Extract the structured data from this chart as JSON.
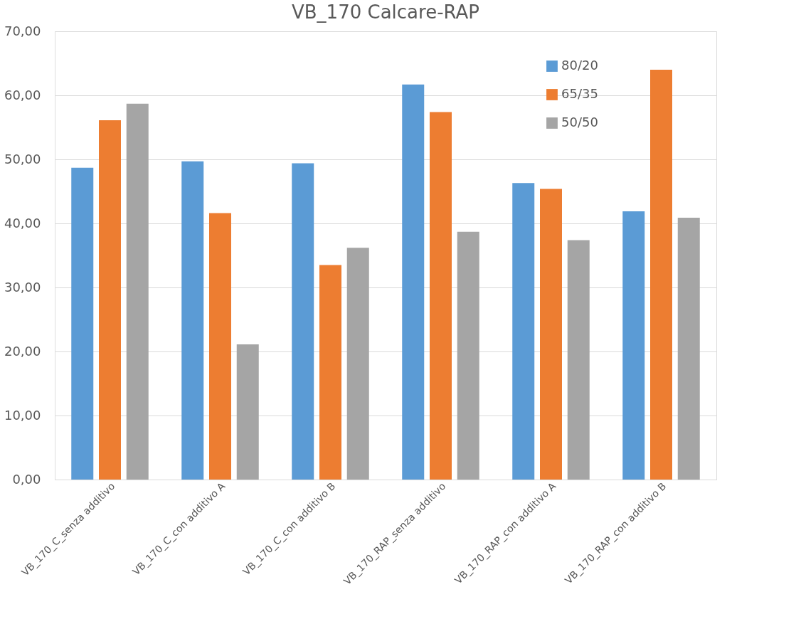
{
  "chart_data": {
    "type": "bar",
    "title": "VB_170 Calcare-RAP",
    "categories": [
      "VB_170_C_senza additivo",
      "VB_170_C_con additivo A",
      "VB_170_C_con additivo B",
      "VB_170_RAP_senza additivo",
      "VB_170_RAP_con additivo A",
      "VB_170_RAP_con additivo B"
    ],
    "series": [
      {
        "name": "80/20",
        "color": "#5b9bd5",
        "values": [
          48.7,
          49.7,
          49.4,
          61.7,
          46.3,
          41.9
        ]
      },
      {
        "name": "65/35",
        "color": "#ed7d31",
        "values": [
          56.1,
          41.6,
          33.5,
          57.4,
          45.4,
          64.0
        ]
      },
      {
        "name": "50/50",
        "color": "#a5a5a5",
        "values": [
          58.7,
          21.1,
          36.2,
          38.7,
          37.4,
          40.9
        ]
      }
    ],
    "ylim": [
      0,
      70
    ],
    "yticks": [
      {
        "value": 0,
        "label": "0,00"
      },
      {
        "value": 10,
        "label": "10,00"
      },
      {
        "value": 20,
        "label": "20,00"
      },
      {
        "value": 30,
        "label": "30,00"
      },
      {
        "value": 40,
        "label": "40,00"
      },
      {
        "value": 50,
        "label": "50,00"
      },
      {
        "value": 60,
        "label": "60,00"
      },
      {
        "value": 70,
        "label": "70,00"
      }
    ],
    "grid": "y",
    "legend": "top right"
  }
}
